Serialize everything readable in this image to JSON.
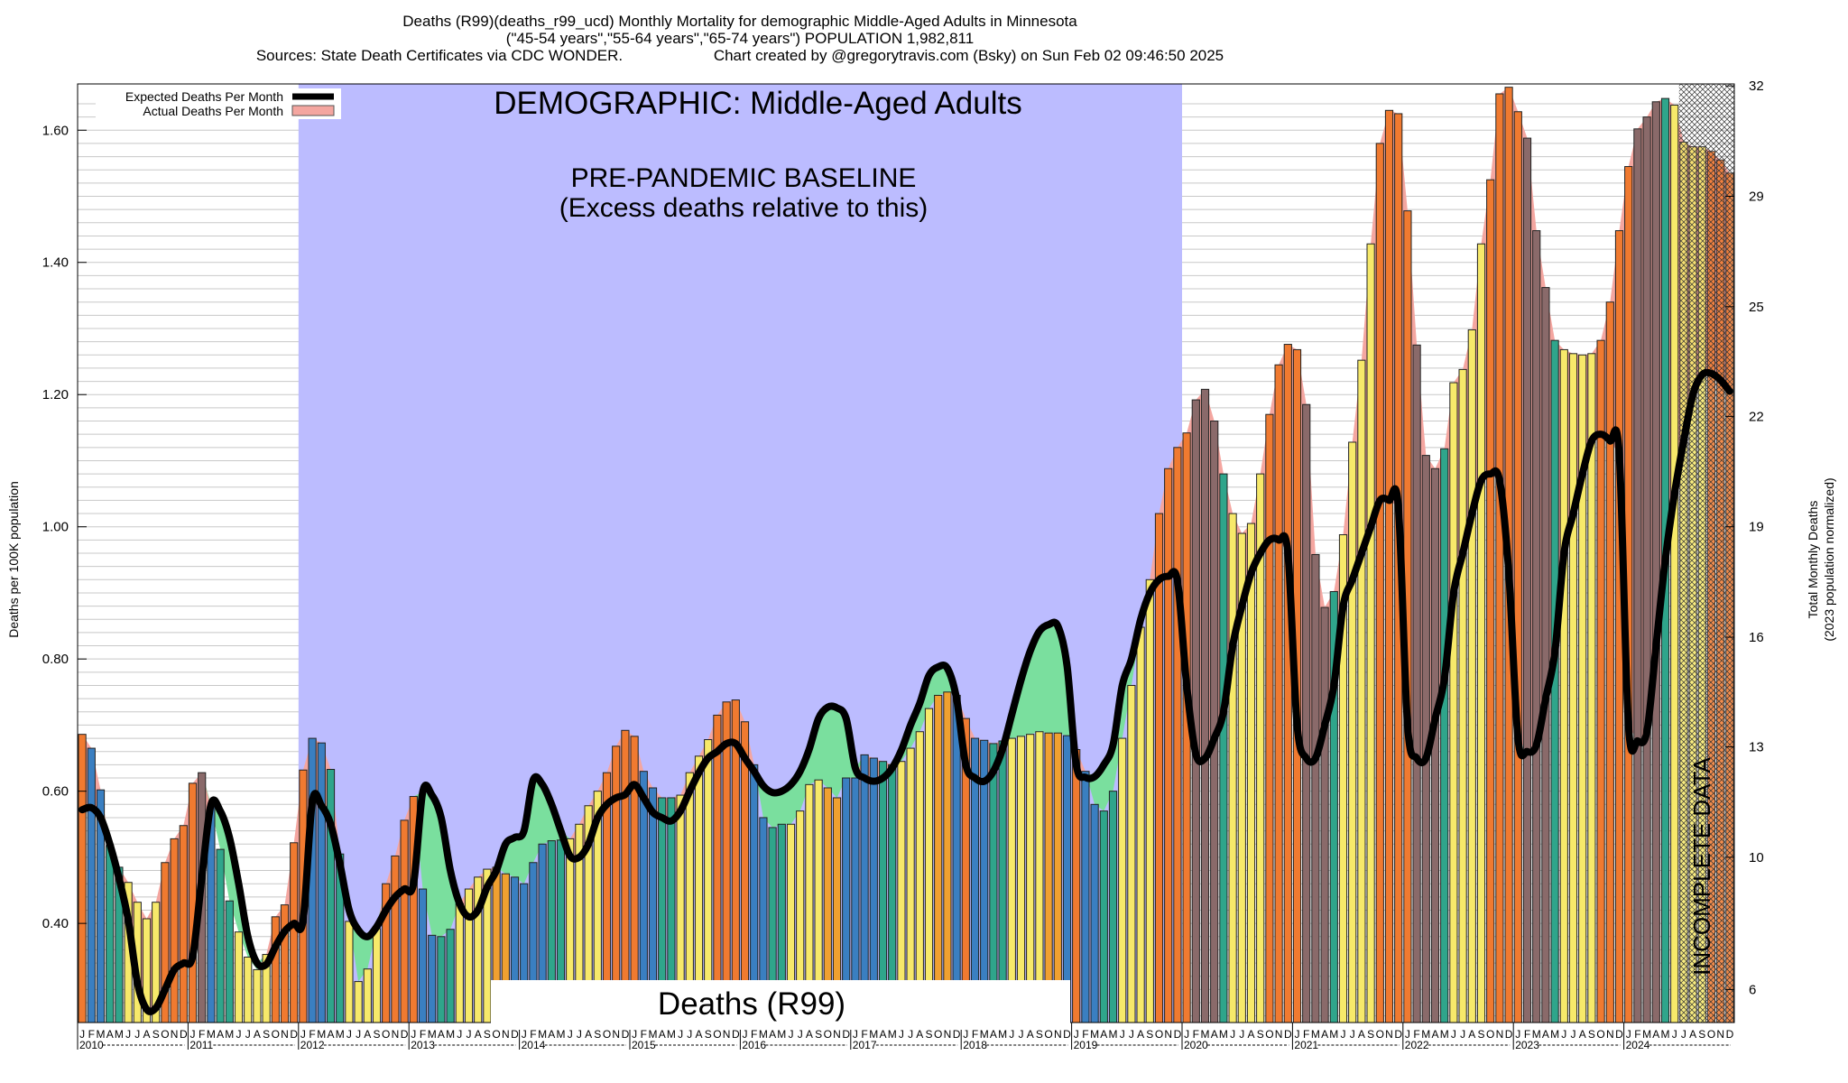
{
  "header": {
    "title": "Deaths (R99)(deaths_r99_ucd) Monthly Mortality for demographic Middle-Aged Adults in Minnesota",
    "subtitle": "(\"45-54 years\",\"55-64 years\",\"65-74 years\") POPULATION 1,982,811",
    "sources": "Sources: State Death Certificates via CDC WONDER.",
    "credit": "Chart created by @gregorytravis.com (Bsky) on Sun Feb 02 09:46:50 2025"
  },
  "chart_data": {
    "type": "bar",
    "title": "DEMOGRAPHIC: Middle-Aged Adults",
    "baseline_label_1": "PRE-PANDEMIC BASELINE",
    "baseline_label_2": "(Excess deaths relative to this)",
    "bottom_label": "Deaths (R99)",
    "incomplete_label": "INCOMPLETE DATA",
    "ylabel_left": "Deaths per 100K population",
    "ylabel_right_1": "Total Monthly Deaths",
    "ylabel_right_2": "(2023 population normalized)",
    "ylim": [
      0.25,
      1.67
    ],
    "yticks_left": [
      "0.40",
      "0.60",
      "0.80",
      "1.00",
      "1.20",
      "1.40",
      "1.60"
    ],
    "yticks_right": [
      {
        "label": "6",
        "value": 0.3
      },
      {
        "label": "10",
        "value": 0.5
      },
      {
        "label": "13",
        "value": 0.667
      },
      {
        "label": "16",
        "value": 0.833
      },
      {
        "label": "19",
        "value": 1.0
      },
      {
        "label": "22",
        "value": 1.167
      },
      {
        "label": "25",
        "value": 1.333
      },
      {
        "label": "29",
        "value": 1.5
      },
      {
        "label": "32",
        "value": 1.667
      }
    ],
    "month_letters": [
      "J",
      "F",
      "M",
      "A",
      "M",
      "J",
      "J",
      "A",
      "S",
      "O",
      "N",
      "D"
    ],
    "years": [
      "2010",
      "2011",
      "2012",
      "2013",
      "2014",
      "2015",
      "2016",
      "2017",
      "2018",
      "2019",
      "2020",
      "2021",
      "2022",
      "2023",
      "2024"
    ],
    "baseline_period": {
      "start": "2012-01",
      "end": "2019-12"
    },
    "incomplete_from": "2024-07",
    "legend": [
      {
        "label": "Expected Deaths Per Month",
        "color": "#000000"
      },
      {
        "label": "Actual Deaths Per Month",
        "color": "#f4a6a0"
      }
    ],
    "colors": {
      "baseline_fill": "#bcbcff",
      "excess_fill": "#f4a6a0",
      "deficit_fill": "#7adf9e",
      "expected_line": "#000000",
      "bar_winter": "#3a7fc1",
      "bar_spring": "#2fa58b",
      "bar_summer": "#f7e96a",
      "bar_autumn": "#f0a030",
      "bar_excess": "#f07a30"
    },
    "series": [
      {
        "name": "Actual Deaths Per Month",
        "values": [
          0.686,
          0.665,
          0.602,
          0.518,
          0.485,
          0.462,
          0.432,
          0.407,
          0.432,
          0.492,
          0.528,
          0.548,
          0.612,
          0.628,
          0.576,
          0.512,
          0.434,
          0.387,
          0.349,
          0.33,
          0.353,
          0.41,
          0.428,
          0.522,
          0.632,
          0.68,
          0.673,
          0.633,
          0.505,
          0.403,
          0.312,
          0.331,
          0.392,
          0.46,
          0.502,
          0.556,
          0.592,
          0.452,
          0.382,
          0.38,
          0.391,
          0.43,
          0.452,
          0.47,
          0.482,
          0.485,
          0.475,
          0.47,
          0.46,
          0.492,
          0.52,
          0.525,
          0.526,
          0.528,
          0.55,
          0.578,
          0.6,
          0.628,
          0.668,
          0.692,
          0.683,
          0.63,
          0.605,
          0.59,
          0.59,
          0.594,
          0.628,
          0.653,
          0.678,
          0.715,
          0.735,
          0.738,
          0.705,
          0.64,
          0.56,
          0.545,
          0.55,
          0.55,
          0.57,
          0.61,
          0.617,
          0.605,
          0.59,
          0.62,
          0.62,
          0.655,
          0.65,
          0.645,
          0.64,
          0.645,
          0.665,
          0.69,
          0.725,
          0.745,
          0.75,
          0.745,
          0.71,
          0.68,
          0.677,
          0.672,
          0.676,
          0.68,
          0.683,
          0.686,
          0.69,
          0.688,
          0.688,
          0.684,
          0.663,
          0.63,
          0.58,
          0.57,
          0.6,
          0.68,
          0.76,
          0.848,
          0.92,
          1.02,
          1.088,
          1.12,
          1.142,
          1.192,
          1.208,
          1.16,
          1.08,
          1.02,
          0.99,
          1.005,
          1.08,
          1.17,
          1.245,
          1.276,
          1.268,
          1.185,
          0.958,
          0.878,
          0.902,
          0.988,
          1.128,
          1.252,
          1.428,
          1.58,
          1.63,
          1.625,
          1.478,
          1.275,
          1.108,
          1.088,
          1.118,
          1.218,
          1.238,
          1.298,
          1.428,
          1.525,
          1.655,
          1.665,
          1.628,
          1.588,
          1.448,
          1.362,
          1.282,
          1.268,
          1.262,
          1.26,
          1.262,
          1.282,
          1.34,
          1.448,
          1.545,
          1.602,
          1.62,
          1.643,
          1.648,
          1.638,
          1.582,
          1.575,
          1.575,
          1.568,
          1.555,
          1.535
        ]
      },
      {
        "name": "Expected Deaths Per Month",
        "values": [
          0.572,
          0.575,
          0.56,
          0.52,
          0.468,
          0.405,
          0.31,
          0.27,
          0.272,
          0.3,
          0.33,
          0.34,
          0.35,
          0.47,
          0.58,
          0.57,
          0.53,
          0.46,
          0.38,
          0.34,
          0.338,
          0.365,
          0.388,
          0.4,
          0.405,
          0.584,
          0.578,
          0.55,
          0.49,
          0.42,
          0.39,
          0.38,
          0.395,
          0.42,
          0.44,
          0.452,
          0.46,
          0.599,
          0.594,
          0.56,
          0.48,
          0.43,
          0.41,
          0.42,
          0.455,
          0.48,
          0.52,
          0.53,
          0.54,
          0.617,
          0.61,
          0.58,
          0.54,
          0.502,
          0.5,
          0.52,
          0.56,
          0.58,
          0.59,
          0.595,
          0.61,
          0.59,
          0.568,
          0.56,
          0.555,
          0.57,
          0.6,
          0.628,
          0.65,
          0.66,
          0.672,
          0.672,
          0.65,
          0.63,
          0.608,
          0.598,
          0.6,
          0.61,
          0.63,
          0.664,
          0.71,
          0.727,
          0.726,
          0.71,
          0.635,
          0.62,
          0.615,
          0.62,
          0.635,
          0.662,
          0.7,
          0.733,
          0.775,
          0.788,
          0.786,
          0.74,
          0.64,
          0.62,
          0.615,
          0.63,
          0.664,
          0.716,
          0.768,
          0.812,
          0.842,
          0.852,
          0.85,
          0.79,
          0.64,
          0.621,
          0.622,
          0.64,
          0.67,
          0.76,
          0.8,
          0.86,
          0.9,
          0.92,
          0.925,
          0.918,
          0.76,
          0.656,
          0.65,
          0.68,
          0.72,
          0.82,
          0.88,
          0.93,
          0.96,
          0.98,
          0.98,
          0.96,
          0.7,
          0.65,
          0.65,
          0.7,
          0.76,
          0.88,
          0.92,
          0.96,
          1.0,
          1.04,
          1.04,
          1.03,
          0.7,
          0.65,
          0.65,
          0.71,
          0.77,
          0.9,
          0.96,
          1.02,
          1.07,
          1.08,
          1.07,
          0.93,
          0.68,
          0.66,
          0.67,
          0.74,
          0.81,
          0.96,
          1.02,
          1.08,
          1.13,
          1.14,
          1.13,
          1.11,
          0.7,
          0.676,
          0.69,
          0.82,
          0.95,
          1.05,
          1.13,
          1.2,
          1.23,
          1.232,
          1.222,
          1.205
        ]
      }
    ]
  }
}
